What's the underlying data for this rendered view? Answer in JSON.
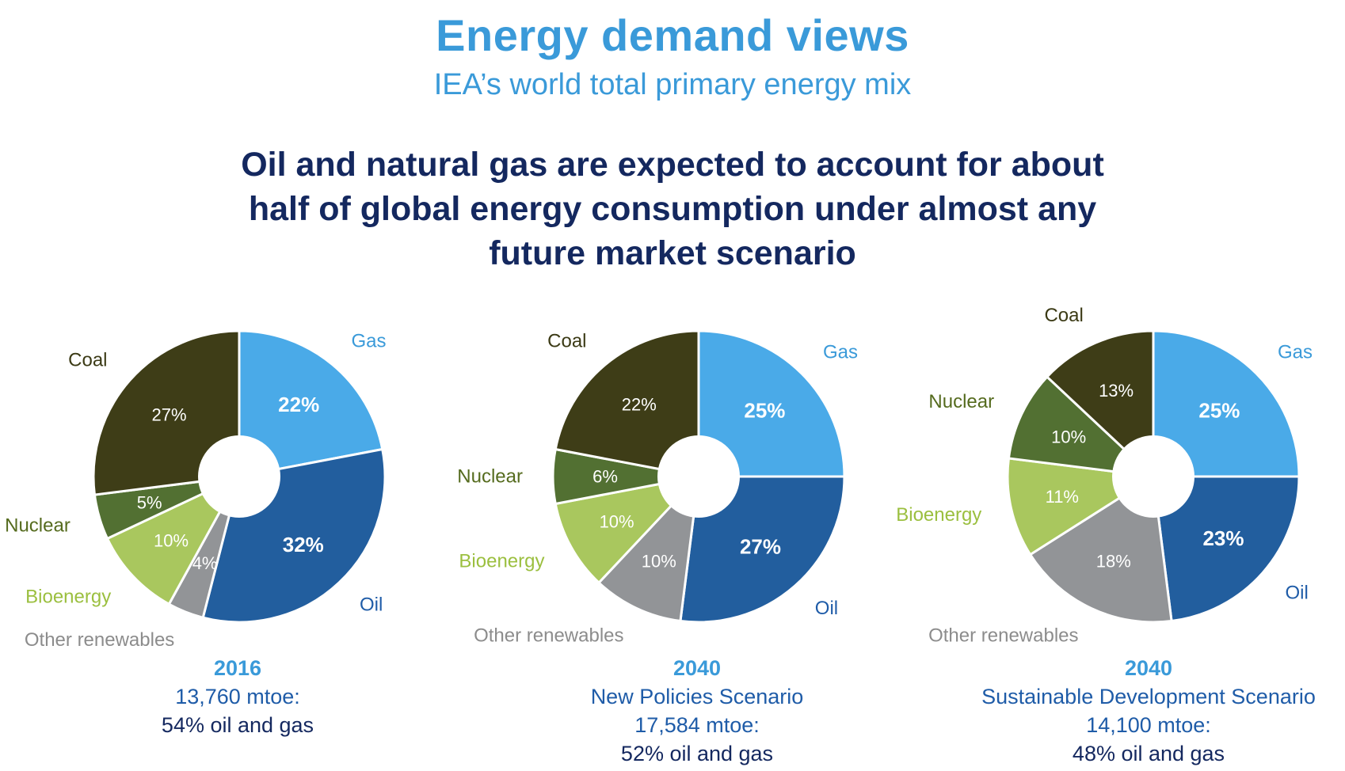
{
  "title": "Energy demand views",
  "subtitle": "IEA’s world total primary energy mix",
  "headline": {
    "line1": "Oil and natural gas are expected to account for about",
    "line2": "half of global energy consumption under almost any",
    "line3": "future market scenario"
  },
  "colors": {
    "Gas": "#4aaae8",
    "Oil": "#225e9e",
    "Other renewables": "#929497",
    "Bioenergy": "#a9c75e",
    "Nuclear": "#527032",
    "Coal": "#3e3d17"
  },
  "label_colors": {
    "Gas": "#3a9ad9",
    "Oil": "#1f5ca8",
    "Other renewables": "#8c8c8c",
    "Bioenergy": "#9bbf3f",
    "Nuclear": "#556b1e",
    "Coal": "#3b3a15"
  },
  "chart_data": [
    {
      "type": "pie",
      "donut": true,
      "slices": [
        {
          "label": "Gas",
          "value": 22,
          "text": "22%"
        },
        {
          "label": "Oil",
          "value": 32,
          "text": "32%"
        },
        {
          "label": "Other renewables",
          "value": 4,
          "text": "4%"
        },
        {
          "label": "Bioenergy",
          "value": 10,
          "text": "10%"
        },
        {
          "label": "Nuclear",
          "value": 5,
          "text": "5%"
        },
        {
          "label": "Coal",
          "value": 27,
          "text": "27%"
        }
      ],
      "caption": {
        "year": "2016",
        "scenario": "",
        "total": "13,760 mtoe:",
        "share": "54% oil and gas"
      }
    },
    {
      "type": "pie",
      "donut": true,
      "slices": [
        {
          "label": "Gas",
          "value": 25,
          "text": "25%"
        },
        {
          "label": "Oil",
          "value": 27,
          "text": "27%"
        },
        {
          "label": "Other renewables",
          "value": 10,
          "text": "10%"
        },
        {
          "label": "Bioenergy",
          "value": 10,
          "text": "10%"
        },
        {
          "label": "Nuclear",
          "value": 6,
          "text": "6%"
        },
        {
          "label": "Coal",
          "value": 22,
          "text": "22%"
        }
      ],
      "caption": {
        "year": "2040",
        "scenario": "New Policies Scenario",
        "total": "17,584 mtoe:",
        "share": "52% oil and gas"
      }
    },
    {
      "type": "pie",
      "donut": true,
      "slices": [
        {
          "label": "Gas",
          "value": 25,
          "text": "25%"
        },
        {
          "label": "Oil",
          "value": 23,
          "text": "23%"
        },
        {
          "label": "Other renewables",
          "value": 18,
          "text": "18%"
        },
        {
          "label": "Bioenergy",
          "value": 11,
          "text": "11%"
        },
        {
          "label": "Nuclear",
          "value": 10,
          "text": "10%"
        },
        {
          "label": "Coal",
          "value": 13,
          "text": "13%"
        }
      ],
      "caption": {
        "year": "2040",
        "scenario": "Sustainable Development Scenario",
        "total": "14,100 mtoe:",
        "share": "48% oil and gas"
      }
    }
  ]
}
